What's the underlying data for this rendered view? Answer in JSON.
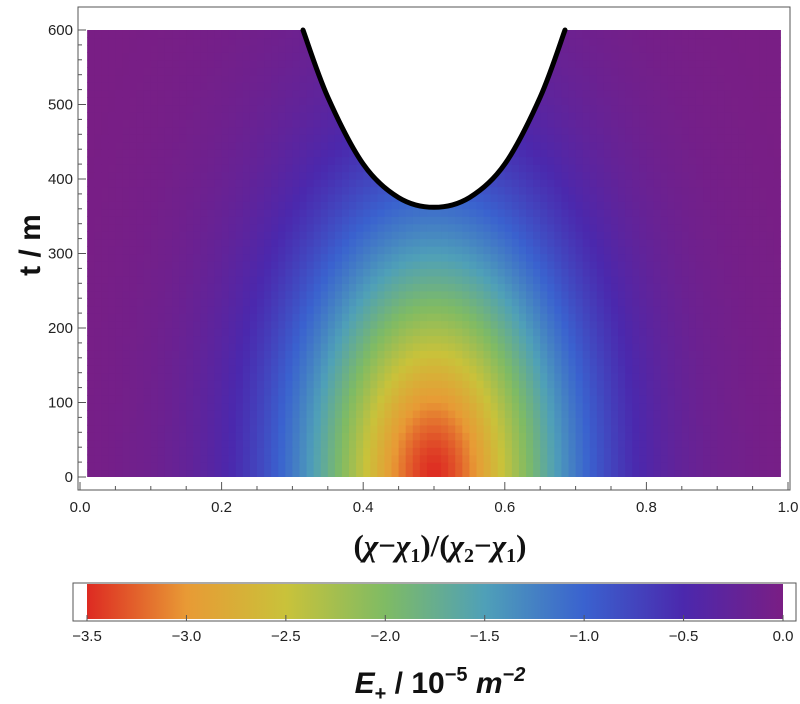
{
  "chart_data": {
    "type": "heatmap",
    "title": "",
    "xlabel_parts": {
      "chi": "χ",
      "minus": "−",
      "sub1": "1",
      "sub2": "2"
    },
    "ylabel": "t / m",
    "xlim": [
      0.0,
      1.0
    ],
    "ylim": [
      0,
      600
    ],
    "x_data_range": [
      0.01,
      0.99
    ],
    "x_ticks": [
      0.0,
      0.2,
      0.4,
      0.6,
      0.8,
      1.0
    ],
    "x_tick_labels": [
      "0.0",
      "0.2",
      "0.4",
      "0.6",
      "0.8",
      "1.0"
    ],
    "y_ticks": [
      0,
      100,
      200,
      300,
      400,
      500,
      600
    ],
    "y_tick_labels": [
      "0",
      "100",
      "200",
      "300",
      "400",
      "500",
      "600"
    ],
    "field": {
      "min_value": -3.5,
      "max_value": 0.0,
      "peak_x": 0.5,
      "peak_t": 0
    },
    "boundary_curve": {
      "x": [
        0.315,
        0.35,
        0.4,
        0.45,
        0.5,
        0.55,
        0.6,
        0.65,
        0.685
      ],
      "t": [
        600,
        510,
        420,
        375,
        362,
        375,
        420,
        510,
        600
      ],
      "color": "#000000"
    },
    "colorbar": {
      "range": [
        -3.5,
        0.0
      ],
      "ticks": [
        -3.5,
        -3.0,
        -2.5,
        -2.0,
        -1.5,
        -1.0,
        -0.5,
        0.0
      ],
      "tick_labels": [
        "−3.5",
        "−3.0",
        "−2.5",
        "−2.0",
        "−1.5",
        "−1.0",
        "−0.5",
        "0.0"
      ],
      "label_parts": {
        "E": "E",
        "sub": "+",
        "mid": " / 10",
        "exp": "−5",
        "m": " m",
        "exp2": "−2"
      },
      "colors": [
        "#dd2a22",
        "#e89a35",
        "#c9c23a",
        "#7fbb64",
        "#4fa0b8",
        "#3a62cf",
        "#4b28ad",
        "#7a1e84"
      ]
    }
  }
}
